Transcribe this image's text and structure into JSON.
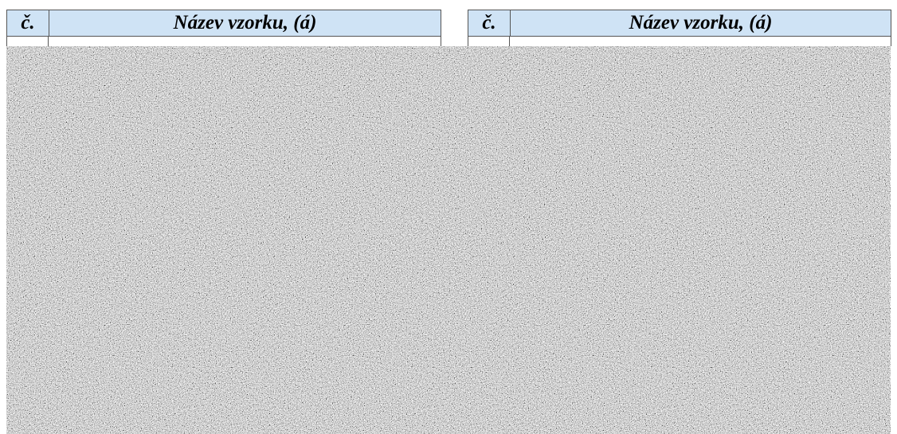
{
  "tables": [
    {
      "headers": [
        "č.",
        "Název vzorku, (á)"
      ]
    },
    {
      "headers": [
        "č.",
        "Název vzorku, (á)"
      ]
    }
  ]
}
